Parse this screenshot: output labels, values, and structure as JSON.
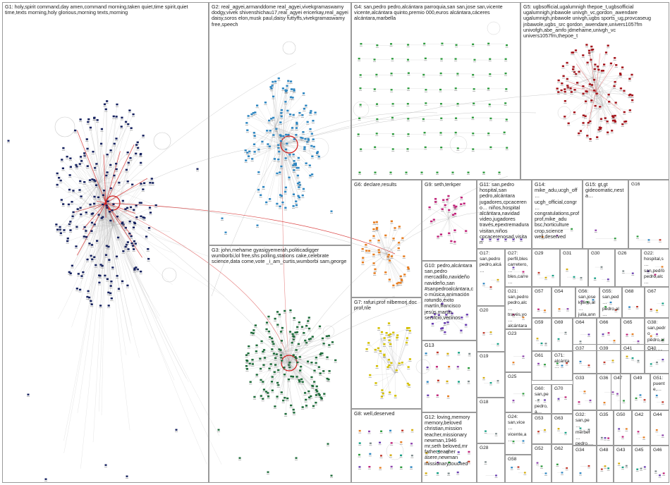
{
  "colors": {
    "g1": "#14205e",
    "g2": "#2e86c1",
    "g3": "#1e6b3a",
    "g4": "#2e9b3e",
    "g5": "#a3141b",
    "g6": "#e67e22",
    "g7": "#d4c000",
    "g9": "#c0257a",
    "g10": "#6a3fb0",
    "edge": "#b5b5b5",
    "highlight": "#d21919"
  },
  "groups": [
    {
      "id": "G1",
      "label": "G1: holy,spirit command,day amen,command morning,taken quiet,time spirit,quiet time,texts morning,holy glorious,morning texts,morning"
    },
    {
      "id": "G2",
      "label": "G2: real_agyei,armanddome real_agyei,vivekgramaswamy dodgy,vivek shivenshichau17,real_agyei ericerkay,real_agyei daisy,soros elon,musk paul,daisy futtyffs,vivekgramaswamy free,speech"
    },
    {
      "id": "G3",
      "label": "G3: john,mehame gyasigyemerah,politicadigger wumborbi,lol free,shs polling,stations cake,celebrate science,data come,vote _i_am_curtis,wumborbi sam,george"
    },
    {
      "id": "G4",
      "label": "G4: san,pedro pedro,alcántara parroquia,san san,jose san,vicente vicente,alcántara quinto,premio 000,euros alcántara,cáceres alcántara,marbella"
    },
    {
      "id": "G5",
      "label": "G5: ugbsofficial,ugalumnigh thepoe_t,ugbsofficial ugalumnigh,jnbawole univgh_vc,gordon_awendare ugalumnigh,jnbawole univgh,ugbs sports_ug,provcaseug jnbawole,ugbs_src gordon_awendare,univers1057fm univofgh,abe_amfo jdmehame,univgh_vc univers1057fm,thepoe_t"
    },
    {
      "id": "G6",
      "label": "G6: declare,results"
    },
    {
      "id": "G7",
      "label": "G7: rafuri,prof nilbemorj,doc prof,nle"
    },
    {
      "id": "G8",
      "label": "G8: well,deserved"
    },
    {
      "id": "G9",
      "label": "G9: seth,terkper"
    },
    {
      "id": "G10",
      "label": "G10: pedro,alcántara san,pedro mercadillo,navideño navideño,san #sanpedroalcántara,co música,animación rotundo,éxito martín,francisco jesús,martín servicio,vecinos"
    },
    {
      "id": "G11",
      "label": "G11: san,pedro hospital,san pedro,alcántara jugadores,cpcacereno… niños,hospital alcántara,navidad video,jugadores través,epextremadura visitan,niños cpcacerenosad,visitan"
    },
    {
      "id": "G12",
      "label": "G12: loving,memory memory,beloved christian,mission teacher,missionary newman,1946 mr,seth beloved,mr father,teacher asere,newman missionary,touched"
    },
    {
      "id": "G13",
      "label": "G13"
    },
    {
      "id": "G14",
      "label": "G14: mike_adu,ucgh_off… ucgh_official,congr… congratulations,prof prof,mike_adu bsc,horticulture crop,science well,deserved"
    },
    {
      "id": "G15",
      "label": "G15: gt,gt gideoomatic,nesta…"
    },
    {
      "id": "G16",
      "label": "G16"
    },
    {
      "id": "G17",
      "label": "G17: san,pedro pedro,alcá…"
    },
    {
      "id": "G18",
      "label": "G18"
    },
    {
      "id": "G19",
      "label": "G19"
    },
    {
      "id": "G20",
      "label": "G20"
    },
    {
      "id": "G21",
      "label": "G21: san,pedro pedro,alc… través,yo… alcántara entrevist… gym,bout…"
    },
    {
      "id": "G22",
      "label": "G22: hospital,s… san,pedro pedro,alc…"
    },
    {
      "id": "G23",
      "label": "G23"
    },
    {
      "id": "G24",
      "label": "G24: san,vice… vicente,a…"
    },
    {
      "id": "G25",
      "label": "G25"
    },
    {
      "id": "G26",
      "label": "G26"
    },
    {
      "id": "G27",
      "label": "G27: perfil,bles carretero,… bles,carre…"
    },
    {
      "id": "G28",
      "label": "G28"
    },
    {
      "id": "G29",
      "label": "G29"
    },
    {
      "id": "G30",
      "label": "G30"
    },
    {
      "id": "G31",
      "label": "G31"
    },
    {
      "id": "G32",
      "label": "G32: san,pe… merbel… pedro,…"
    },
    {
      "id": "G33",
      "label": "G33"
    },
    {
      "id": "G34",
      "label": "G34"
    },
    {
      "id": "G35",
      "label": "G35"
    },
    {
      "id": "G36",
      "label": "G36"
    },
    {
      "id": "G37",
      "label": "G37"
    },
    {
      "id": "G38",
      "label": "G38: san,pedro pedro,al… málaga,…"
    },
    {
      "id": "G39",
      "label": "G39"
    },
    {
      "id": "G40",
      "label": "G40"
    },
    {
      "id": "G41",
      "label": "G41"
    },
    {
      "id": "G42",
      "label": "G42"
    },
    {
      "id": "G43",
      "label": "G43"
    },
    {
      "id": "G44",
      "label": "G44"
    },
    {
      "id": "G45",
      "label": "G45"
    },
    {
      "id": "G46",
      "label": "G46"
    },
    {
      "id": "G47",
      "label": "G47"
    },
    {
      "id": "G48",
      "label": "G48"
    },
    {
      "id": "G49",
      "label": "G49"
    },
    {
      "id": "G50",
      "label": "G50"
    },
    {
      "id": "G51",
      "label": "G51: puente,…"
    },
    {
      "id": "G52",
      "label": "G52"
    },
    {
      "id": "G53",
      "label": "G53"
    },
    {
      "id": "G54",
      "label": "G54"
    },
    {
      "id": "G55",
      "label": "G55: san,ped… pedro,al…"
    },
    {
      "id": "G56",
      "label": "G56: san,jose kyline,al… julia,anne anna,ju…"
    },
    {
      "id": "G57",
      "label": "G57"
    },
    {
      "id": "G58",
      "label": "G58"
    },
    {
      "id": "G59",
      "label": "G59"
    },
    {
      "id": "G60",
      "label": "G60: san,pe… pedro,a… nuevo,… #loterí…"
    },
    {
      "id": "G61",
      "label": "G61"
    },
    {
      "id": "G62",
      "label": "G62"
    },
    {
      "id": "G63",
      "label": "G63"
    },
    {
      "id": "G64",
      "label": "G64"
    },
    {
      "id": "G65",
      "label": "G65"
    },
    {
      "id": "G66",
      "label": "G66"
    },
    {
      "id": "G67",
      "label": "G67"
    },
    {
      "id": "G68",
      "label": "G68"
    },
    {
      "id": "G69",
      "label": "G69"
    },
    {
      "id": "G70",
      "label": "G70"
    },
    {
      "id": "G71",
      "label": "G71: alcánta…"
    }
  ]
}
